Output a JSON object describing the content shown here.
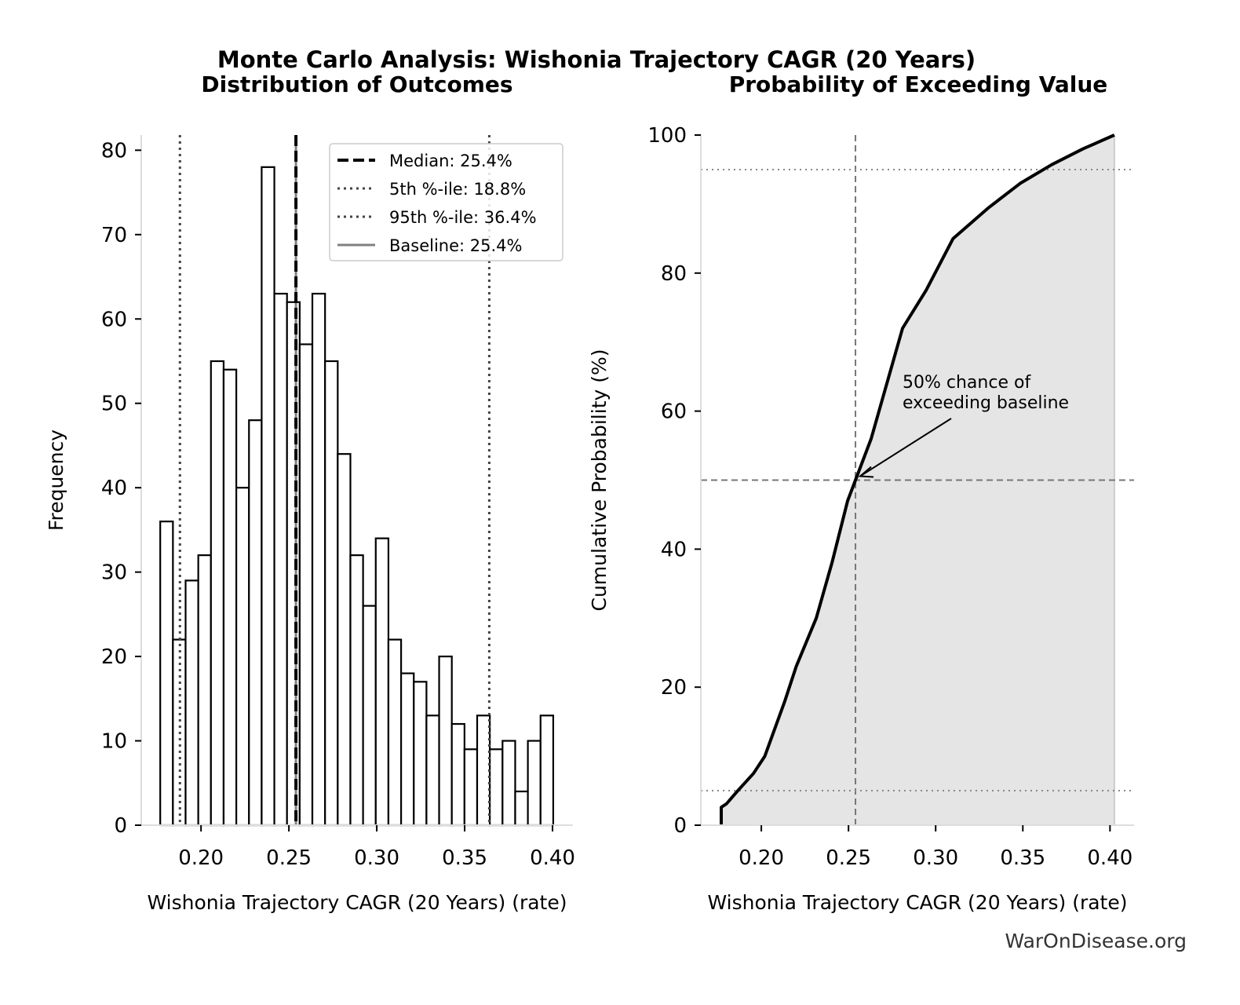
{
  "title": "Monte Carlo Analysis: Wishonia Trajectory CAGR (20 Years)",
  "watermark": "WarOnDisease.org",
  "chart_data": [
    {
      "type": "bar",
      "subtitle": "Distribution of Outcomes",
      "xlabel": "Wishonia Trajectory CAGR (20 Years) (rate)",
      "ylabel": "Frequency",
      "xlim": [
        0.166,
        0.4116
      ],
      "ylim": [
        0,
        81.8
      ],
      "xticks": [
        "0.20",
        "0.25",
        "0.30",
        "0.35",
        "0.40"
      ],
      "yticks": [
        "0",
        "10",
        "20",
        "30",
        "40",
        "50",
        "60",
        "70",
        "80"
      ],
      "bin_range": [
        0.1768,
        0.4004
      ],
      "values": [
        36,
        22,
        29,
        32,
        55,
        54,
        40,
        48,
        78,
        63,
        62,
        57,
        63,
        55,
        44,
        32,
        26,
        34,
        22,
        18,
        17,
        13,
        20,
        12,
        9,
        13,
        9,
        10,
        4,
        10,
        13
      ],
      "lines": [
        {
          "label": "Median: 25.4%",
          "x": 0.254,
          "style": "dashed",
          "color": "#000000"
        },
        {
          "label": "5th %-ile: 18.8%",
          "x": 0.188,
          "style": "dotted",
          "color": "#444444"
        },
        {
          "label": "95th %-ile: 36.4%",
          "x": 0.364,
          "style": "dotted",
          "color": "#444444"
        },
        {
          "label": "Baseline: 25.4%",
          "x": 0.254,
          "style": "solid",
          "color": "#808080"
        }
      ],
      "legend": "top-right",
      "grid": false
    },
    {
      "type": "area",
      "subtitle": "Probability of Exceeding Value",
      "xlabel": "Wishonia Trajectory CAGR (20 Years) (rate)",
      "ylabel": "Cumulative Probability (%)",
      "xlim": [
        0.1653,
        0.4138
      ],
      "ylim": [
        0,
        100
      ],
      "xticks": [
        "0.20",
        "0.25",
        "0.30",
        "0.35",
        "0.40"
      ],
      "yticks": [
        "0",
        "20",
        "40",
        "60",
        "80",
        "100"
      ],
      "x": [
        0.177,
        0.177,
        0.18,
        0.1865,
        0.1955,
        0.202,
        0.2135,
        0.22,
        0.2315,
        0.2405,
        0.2495,
        0.254,
        0.263,
        0.272,
        0.281,
        0.2945,
        0.31,
        0.3305,
        0.3485,
        0.3665,
        0.3845,
        0.4025
      ],
      "y": [
        0,
        2.6,
        3.1,
        5,
        7.5,
        10,
        18,
        23,
        30,
        38,
        47,
        50,
        56,
        64,
        72,
        77.5,
        85,
        89.5,
        93,
        95.7,
        98,
        100
      ],
      "fill_color": "#e5e5e5",
      "reference_lines": {
        "vertical_x": 0.254,
        "horizontal_dashed_y": 50,
        "horizontal_dotted_y": [
          5,
          95
        ]
      },
      "annotation": {
        "lines": [
          "50% chance of",
          "exceeding baseline"
        ],
        "point": [
          0.254,
          50
        ],
        "text_at": [
          0.28,
          62
        ]
      },
      "grid": false
    }
  ]
}
